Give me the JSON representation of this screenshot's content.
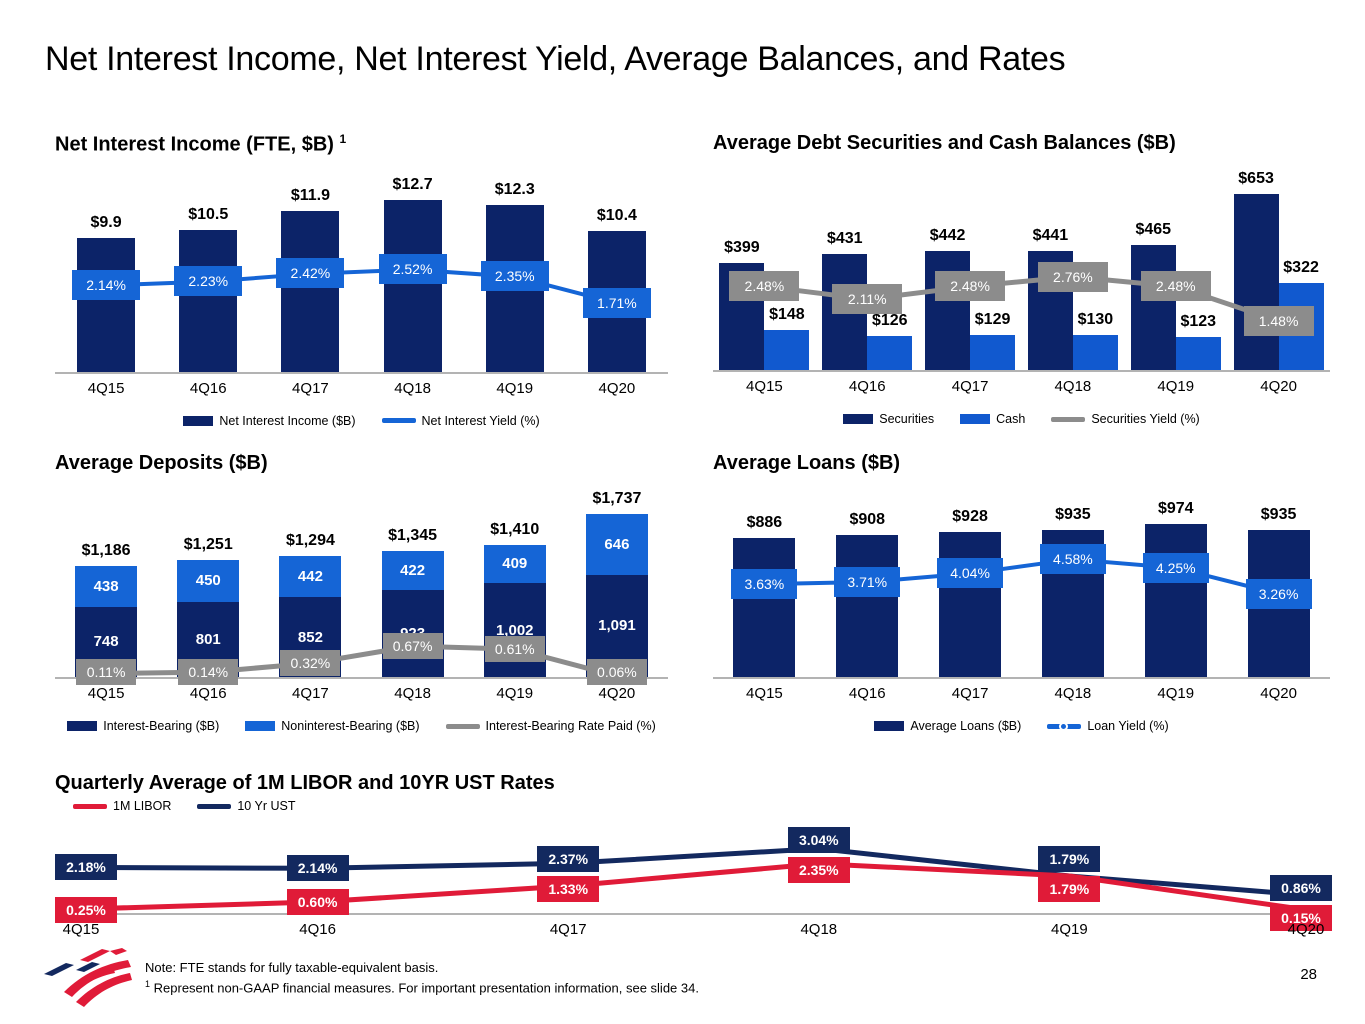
{
  "title": "Net Interest Income, Net Interest Yield, Average Balances, and Rates",
  "page_number": "28",
  "footer": {
    "note1": "Note: FTE stands for fully taxable-equivalent basis.",
    "note2_superscript": "1",
    "note2": "Represent non-GAAP financial measures. For important presentation information, see slide 34."
  },
  "colors": {
    "dark_navy": "#0c2368",
    "bright_blue": "#1159cf",
    "box_blue": "#1565d6",
    "gray": "#8c8c8c",
    "axis_gray": "#b3b3b3",
    "red": "#e01b38",
    "ust_navy": "#13295f",
    "white": "#ffffff"
  },
  "chart_data": [
    {
      "id": "nii",
      "type": "bar",
      "title": "Net Interest Income (FTE, $B)",
      "title_superscript": "1",
      "categories": [
        "4Q15",
        "4Q16",
        "4Q17",
        "4Q18",
        "4Q19",
        "4Q20"
      ],
      "series": [
        {
          "name": "Net Interest Income ($B)",
          "color": "dark_navy",
          "values": [
            9.9,
            10.5,
            11.9,
            12.7,
            12.3,
            10.4
          ],
          "labels": [
            "$9.9",
            "$10.5",
            "$11.9",
            "$12.7",
            "$12.3",
            "$10.4"
          ]
        }
      ],
      "line": {
        "name": "Net Interest Yield (%)",
        "color": "box_blue",
        "values": [
          2.14,
          2.23,
          2.42,
          2.52,
          2.35,
          1.71
        ],
        "labels": [
          "2.14%",
          "2.23%",
          "2.42%",
          "2.52%",
          "2.35%",
          "1.71%"
        ]
      },
      "ylim": [
        0,
        15.3
      ],
      "line_ylim": [
        0,
        5
      ],
      "grid": false,
      "legend_position": "bottom",
      "legend": [
        {
          "marker": "bar",
          "color": "dark_navy",
          "label": "Net Interest Income ($B)"
        },
        {
          "marker": "line",
          "color": "box_blue",
          "label": "Net Interest Yield (%)"
        }
      ]
    },
    {
      "id": "seccash",
      "type": "grouped-bar",
      "title": "Average Debt Securities and Cash Balances ($B)",
      "categories": [
        "4Q15",
        "4Q16",
        "4Q17",
        "4Q18",
        "4Q19",
        "4Q20"
      ],
      "series": [
        {
          "name": "Securities",
          "color": "dark_navy",
          "values": [
            399,
            431,
            442,
            441,
            465,
            653
          ],
          "labels": [
            "$399",
            "$431",
            "$442",
            "$441",
            "$465",
            "$653"
          ]
        },
        {
          "name": "Cash",
          "color": "bright_blue",
          "values": [
            148,
            126,
            129,
            130,
            123,
            322
          ],
          "labels": [
            "$148",
            "$126",
            "$129",
            "$130",
            "$123",
            "$322"
          ]
        }
      ],
      "line": {
        "name": "Securities Yield (%)",
        "color": "gray",
        "values": [
          2.48,
          2.11,
          2.48,
          2.76,
          2.48,
          1.48
        ],
        "labels": [
          "2.48%",
          "2.11%",
          "2.48%",
          "2.76%",
          "2.48%",
          "1.48%"
        ]
      },
      "ylim": [
        0,
        770
      ],
      "line_ylim": [
        0,
        6
      ],
      "grid": false,
      "legend_position": "bottom",
      "legend": [
        {
          "marker": "bar",
          "color": "dark_navy",
          "label": "Securities"
        },
        {
          "marker": "bar",
          "color": "bright_blue",
          "label": "Cash"
        },
        {
          "marker": "line",
          "color": "gray",
          "label": "Securities Yield (%)"
        }
      ]
    },
    {
      "id": "deposits",
      "type": "stacked-bar",
      "title": "Average Deposits ($B)",
      "categories": [
        "4Q15",
        "4Q16",
        "4Q17",
        "4Q18",
        "4Q19",
        "4Q20"
      ],
      "series": [
        {
          "name": "Interest-Bearing ($B)",
          "color": "dark_navy",
          "values": [
            748,
            801,
            852,
            923,
            1002,
            1091
          ],
          "labels": [
            "748",
            "801",
            "852",
            "923",
            "1,002",
            "1,091"
          ]
        },
        {
          "name": "Noninterest-Bearing ($B)",
          "color": "box_blue",
          "values": [
            438,
            450,
            442,
            422,
            409,
            646
          ],
          "labels": [
            "438",
            "450",
            "442",
            "422",
            "409",
            "646"
          ]
        }
      ],
      "totals": [
        "$1,186",
        "$1,251",
        "$1,294",
        "$1,345",
        "$1,410",
        "$1,737"
      ],
      "line": {
        "name": "Interest-Bearing Rate Paid (%)",
        "color": "gray",
        "values": [
          0.11,
          0.14,
          0.32,
          0.67,
          0.61,
          0.06
        ],
        "labels": [
          "0.11%",
          "0.14%",
          "0.32%",
          "0.67%",
          "0.61%",
          "0.06%"
        ]
      },
      "ylim": [
        0,
        2090
      ],
      "line_ylim": [
        0,
        4
      ],
      "grid": false,
      "legend_position": "bottom",
      "legend": [
        {
          "marker": "bar",
          "color": "dark_navy",
          "label": "Interest-Bearing ($B)"
        },
        {
          "marker": "bar",
          "color": "box_blue",
          "label": "Noninterest-Bearing ($B)"
        },
        {
          "marker": "line",
          "color": "gray",
          "label": "Interest-Bearing Rate Paid (%)"
        }
      ]
    },
    {
      "id": "loans",
      "type": "bar",
      "title": "Average Loans ($B)",
      "categories": [
        "4Q15",
        "4Q16",
        "4Q17",
        "4Q18",
        "4Q19",
        "4Q20"
      ],
      "series": [
        {
          "name": "Average Loans ($B)",
          "color": "dark_navy",
          "values": [
            886,
            908,
            928,
            935,
            974,
            935
          ],
          "labels": [
            "$886",
            "$908",
            "$928",
            "$935",
            "$974",
            "$935"
          ]
        }
      ],
      "line": {
        "name": "Loan Yield (%)",
        "color": "box_blue",
        "values": [
          3.63,
          3.71,
          4.04,
          4.58,
          4.25,
          3.26
        ],
        "labels": [
          "3.63%",
          "3.71%",
          "4.04%",
          "4.58%",
          "4.25%",
          "3.26%"
        ]
      },
      "ylim": [
        0,
        1250
      ],
      "line_ylim": [
        0,
        7.5
      ],
      "grid": false,
      "legend_position": "bottom",
      "legend": [
        {
          "marker": "bar",
          "color": "dark_navy",
          "label": "Average Loans ($B)"
        },
        {
          "marker": "line-dot",
          "color": "box_blue",
          "label": "Loan Yield (%)"
        }
      ]
    },
    {
      "id": "libor",
      "type": "line",
      "title": "Quarterly Average of 1M LIBOR and 10YR UST Rates",
      "categories": [
        "4Q15",
        "4Q16",
        "4Q17",
        "4Q18",
        "4Q19",
        "4Q20"
      ],
      "series": [
        {
          "name": "10 Yr UST",
          "color": "ust_navy",
          "values": [
            2.18,
            2.14,
            2.37,
            3.04,
            1.79,
            0.86
          ],
          "labels": [
            "2.18%",
            "2.14%",
            "2.37%",
            "3.04%",
            "1.79%",
            "0.86%"
          ]
        },
        {
          "name": "1M LIBOR",
          "color": "red",
          "values": [
            0.25,
            0.6,
            1.33,
            2.35,
            1.79,
            0.15
          ],
          "labels": [
            "0.25%",
            "0.60%",
            "1.33%",
            "2.35%",
            "1.79%",
            "0.15%"
          ]
        }
      ],
      "ylim": [
        0,
        4.4
      ],
      "grid": false,
      "legend_position": "top-left",
      "legend": [
        {
          "marker": "line",
          "color": "red",
          "label": "1M LIBOR"
        },
        {
          "marker": "line",
          "color": "ust_navy",
          "label": "10 Yr UST"
        }
      ]
    }
  ]
}
